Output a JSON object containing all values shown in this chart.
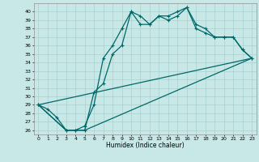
{
  "xlabel": "Humidex (Indice chaleur)",
  "bg_color": "#c8e8e8",
  "grid_color": "#a8d0d0",
  "line_color": "#006868",
  "xlim": [
    -0.5,
    23.5
  ],
  "ylim": [
    25.5,
    41.0
  ],
  "xticks": [
    0,
    1,
    2,
    3,
    4,
    5,
    6,
    7,
    8,
    9,
    10,
    11,
    12,
    13,
    14,
    15,
    16,
    17,
    18,
    19,
    20,
    21,
    22,
    23
  ],
  "yticks": [
    26,
    27,
    28,
    29,
    30,
    31,
    32,
    33,
    34,
    35,
    36,
    37,
    38,
    39,
    40
  ],
  "line1_x": [
    0,
    1,
    2,
    3,
    4,
    5,
    6,
    7,
    8,
    9,
    10,
    11,
    12,
    13,
    14,
    15,
    16,
    17,
    18,
    19,
    20,
    21,
    22,
    23
  ],
  "line1_y": [
    29.0,
    28.5,
    27.5,
    26.0,
    26.0,
    26.0,
    30.5,
    31.5,
    35.0,
    36.0,
    40.0,
    39.5,
    38.5,
    39.5,
    39.5,
    40.0,
    40.5,
    38.5,
    38.0,
    37.0,
    37.0,
    37.0,
    35.5,
    34.5
  ],
  "line2_x": [
    0,
    3,
    4,
    5,
    6,
    7,
    8,
    9,
    10,
    11,
    12,
    13,
    14,
    15,
    16,
    17,
    18,
    19,
    20,
    21,
    22,
    23
  ],
  "line2_y": [
    29.0,
    26.0,
    26.0,
    26.5,
    29.0,
    34.5,
    36.0,
    38.0,
    40.0,
    38.5,
    38.5,
    39.5,
    39.0,
    39.5,
    40.5,
    38.0,
    37.5,
    37.0,
    37.0,
    37.0,
    35.5,
    34.5
  ],
  "line3_x": [
    0,
    3,
    4,
    5,
    23
  ],
  "line3_y": [
    29.0,
    26.0,
    26.0,
    26.0,
    34.5
  ],
  "line4_x": [
    0,
    23
  ],
  "line4_y": [
    29.0,
    34.5
  ]
}
